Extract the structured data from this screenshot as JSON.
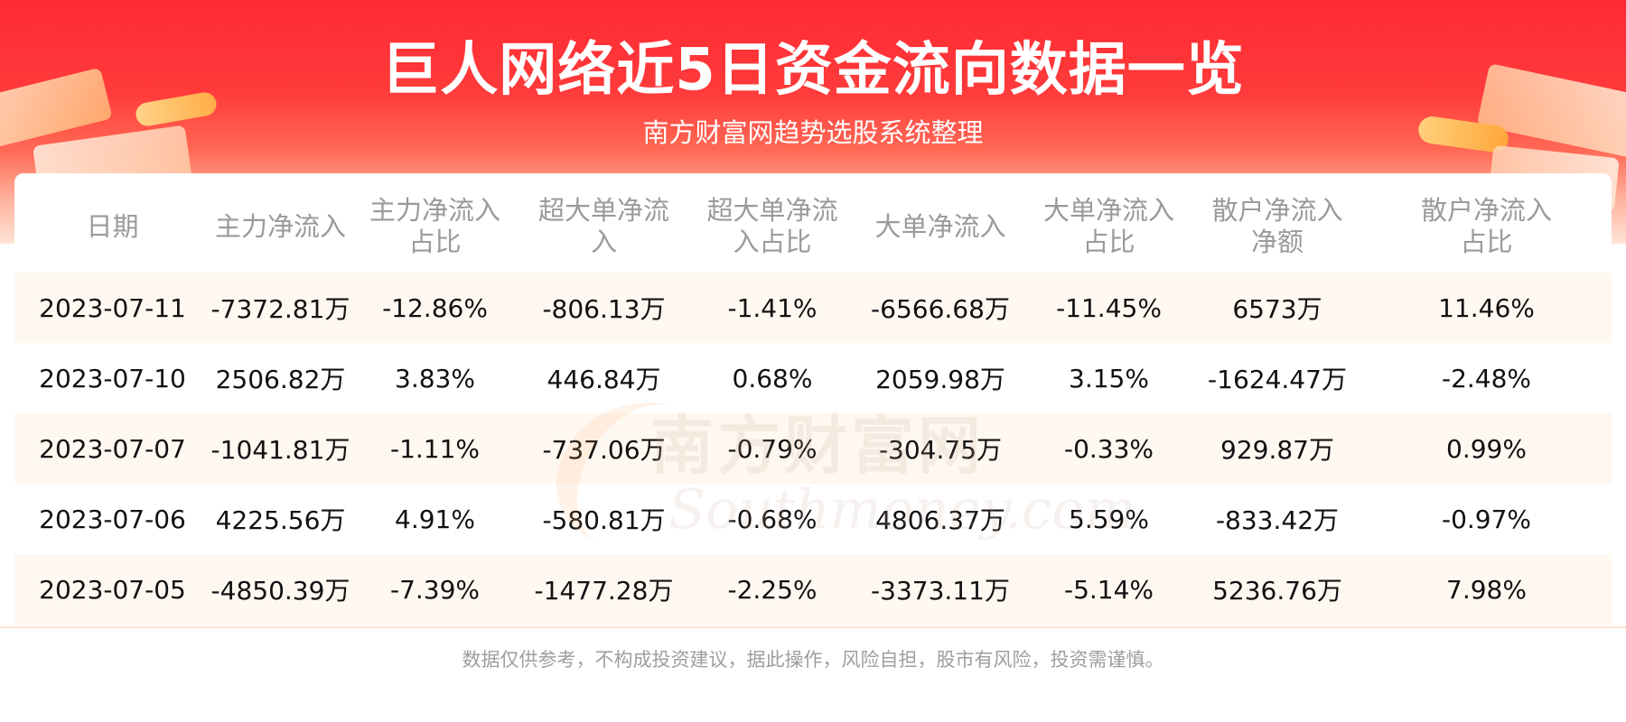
{
  "header": {
    "title": "巨人网络近5日资金流向数据一览",
    "subtitle": "南方财富网趋势选股系统整理"
  },
  "watermark": {
    "cn": "南方财富网",
    "en": "Southmoney.com"
  },
  "table": {
    "columns": [
      "日期",
      "主力净流入",
      "主力净流入占比",
      "超大单净流入",
      "超大单净流入占比",
      "大单净流入",
      "大单净流入占比",
      "散户净流入净额",
      "散户净流入占比"
    ],
    "rows": [
      [
        "2023-07-11",
        "-7372.81万",
        "-12.86%",
        "-806.13万",
        "-1.41%",
        "-6566.68万",
        "-11.45%",
        "6573万",
        "11.46%"
      ],
      [
        "2023-07-10",
        "2506.82万",
        "3.83%",
        "446.84万",
        "0.68%",
        "2059.98万",
        "3.15%",
        "-1624.47万",
        "-2.48%"
      ],
      [
        "2023-07-07",
        "-1041.81万",
        "-1.11%",
        "-737.06万",
        "-0.79%",
        "-304.75万",
        "-0.33%",
        "929.87万",
        "0.99%"
      ],
      [
        "2023-07-06",
        "4225.56万",
        "4.91%",
        "-580.81万",
        "-0.68%",
        "4806.37万",
        "5.59%",
        "-833.42万",
        "-0.97%"
      ],
      [
        "2023-07-05",
        "-4850.39万",
        "-7.39%",
        "-1477.28万",
        "-2.25%",
        "-3373.11万",
        "-5.14%",
        "5236.76万",
        "7.98%"
      ]
    ]
  },
  "footer": {
    "disclaimer": "数据仅供参考，不构成投资建议，据此操作，风险自担，股市有风险，投资需谨慎。"
  },
  "colors": {
    "banner_red": "#ff2a33",
    "stripe_bg": "#fff8f1",
    "header_text": "#9a9a9a"
  }
}
